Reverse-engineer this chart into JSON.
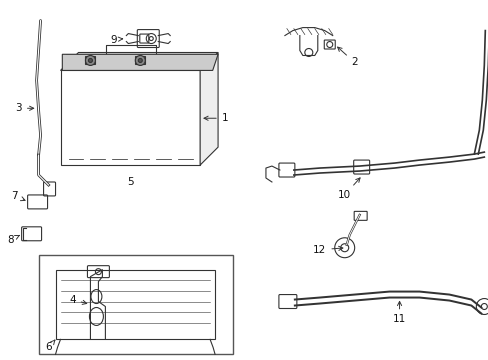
{
  "bg_color": "#ffffff",
  "line_color": "#333333",
  "text_color": "#111111",
  "font_size": 7.5,
  "lw": 0.8,
  "fig_w": 4.89,
  "fig_h": 3.6,
  "dpi": 100
}
